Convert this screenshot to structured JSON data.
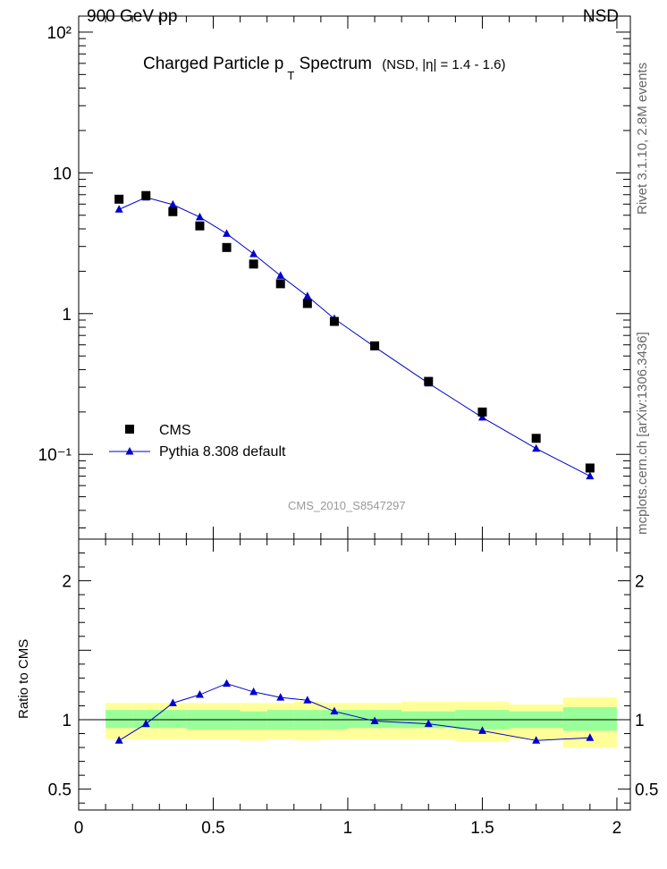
{
  "header": {
    "left": "900 GeV pp",
    "right": "NSD"
  },
  "side_texts": {
    "version": "Rivet 3.1.10, 2.8M events",
    "source": "mcplots.cern.ch [arXiv:1306.3436]"
  },
  "chart_data": [
    {
      "type": "scatter",
      "title": "Charged Particle p",
      "title_sub": "T",
      "title_tail": "Spectrum",
      "title_note": "(NSD, |η| = 1.4 - 1.6)",
      "watermark": "CMS_2010_S8547297",
      "yscale": "log",
      "ylim": [
        0.025,
        130
      ],
      "xlim": [
        0,
        2.05
      ],
      "ytick_labels": [
        "10⁻¹",
        "1",
        "10",
        "10²"
      ],
      "legend": {
        "position": "lower-left",
        "entries": [
          "CMS",
          "Pythia 8.308 default"
        ]
      },
      "colors": {
        "data": "#000000",
        "mc": "#0000cc"
      },
      "series": [
        {
          "name": "CMS",
          "x": [
            0.15,
            0.25,
            0.35,
            0.45,
            0.55,
            0.65,
            0.75,
            0.85,
            0.95,
            1.1,
            1.3,
            1.5,
            1.7,
            1.9
          ],
          "y": [
            6.5,
            6.9,
            5.3,
            4.2,
            2.95,
            2.25,
            1.63,
            1.18,
            0.88,
            0.59,
            0.33,
            0.2,
            0.13,
            0.08
          ]
        },
        {
          "name": "Pythia 8.308 default",
          "x": [
            0.15,
            0.25,
            0.35,
            0.45,
            0.55,
            0.65,
            0.75,
            0.85,
            0.95,
            1.1,
            1.3,
            1.5,
            1.7,
            1.9
          ],
          "y": [
            5.5,
            6.7,
            5.95,
            4.85,
            3.7,
            2.65,
            1.86,
            1.33,
            0.92,
            0.58,
            0.32,
            0.183,
            0.11,
            0.07
          ]
        }
      ]
    },
    {
      "type": "line",
      "ylabel": "Ratio to CMS",
      "xlim": [
        0,
        2.05
      ],
      "ylim": [
        0.35,
        2.3
      ],
      "xtick_labels": [
        "0",
        "0.5",
        "1",
        "1.5",
        "2"
      ],
      "ytick_labels": [
        "0.5",
        "1",
        "2"
      ],
      "reference_line": 1.0,
      "colors": {
        "band_outer": "#ffff99",
        "band_inner": "#99ff99",
        "line": "#0000cc"
      },
      "bins": [
        [
          0.1,
          0.2
        ],
        [
          0.2,
          0.3
        ],
        [
          0.3,
          0.4
        ],
        [
          0.4,
          0.5
        ],
        [
          0.5,
          0.6
        ],
        [
          0.6,
          0.7
        ],
        [
          0.7,
          0.8
        ],
        [
          0.8,
          0.9
        ],
        [
          0.9,
          1.0
        ],
        [
          1.0,
          1.2
        ],
        [
          1.2,
          1.4
        ],
        [
          1.4,
          1.6
        ],
        [
          1.6,
          1.8
        ],
        [
          1.8,
          2.0
        ]
      ],
      "band_inner": [
        [
          0.94,
          1.07
        ],
        [
          0.94,
          1.07
        ],
        [
          0.94,
          1.07
        ],
        [
          0.93,
          1.07
        ],
        [
          0.93,
          1.07
        ],
        [
          0.93,
          1.06
        ],
        [
          0.93,
          1.07
        ],
        [
          0.93,
          1.07
        ],
        [
          0.93,
          1.07
        ],
        [
          0.94,
          1.07
        ],
        [
          0.94,
          1.06
        ],
        [
          0.93,
          1.07
        ],
        [
          0.94,
          1.06
        ],
        [
          0.92,
          1.09
        ]
      ],
      "band_outer": [
        [
          0.86,
          1.12
        ],
        [
          0.86,
          1.12
        ],
        [
          0.86,
          1.12
        ],
        [
          0.86,
          1.12
        ],
        [
          0.86,
          1.12
        ],
        [
          0.85,
          1.12
        ],
        [
          0.86,
          1.12
        ],
        [
          0.85,
          1.13
        ],
        [
          0.86,
          1.12
        ],
        [
          0.86,
          1.12
        ],
        [
          0.86,
          1.13
        ],
        [
          0.84,
          1.13
        ],
        [
          0.86,
          1.11
        ],
        [
          0.8,
          1.16
        ]
      ],
      "series": [
        {
          "name": "Pythia 8.308 default",
          "x": [
            0.15,
            0.25,
            0.35,
            0.45,
            0.55,
            0.65,
            0.75,
            0.85,
            0.95,
            1.1,
            1.3,
            1.5,
            1.7,
            1.9
          ],
          "y": [
            0.85,
            0.97,
            1.12,
            1.18,
            1.26,
            1.2,
            1.16,
            1.14,
            1.06,
            0.99,
            0.97,
            0.92,
            0.85,
            0.87
          ]
        }
      ]
    }
  ]
}
